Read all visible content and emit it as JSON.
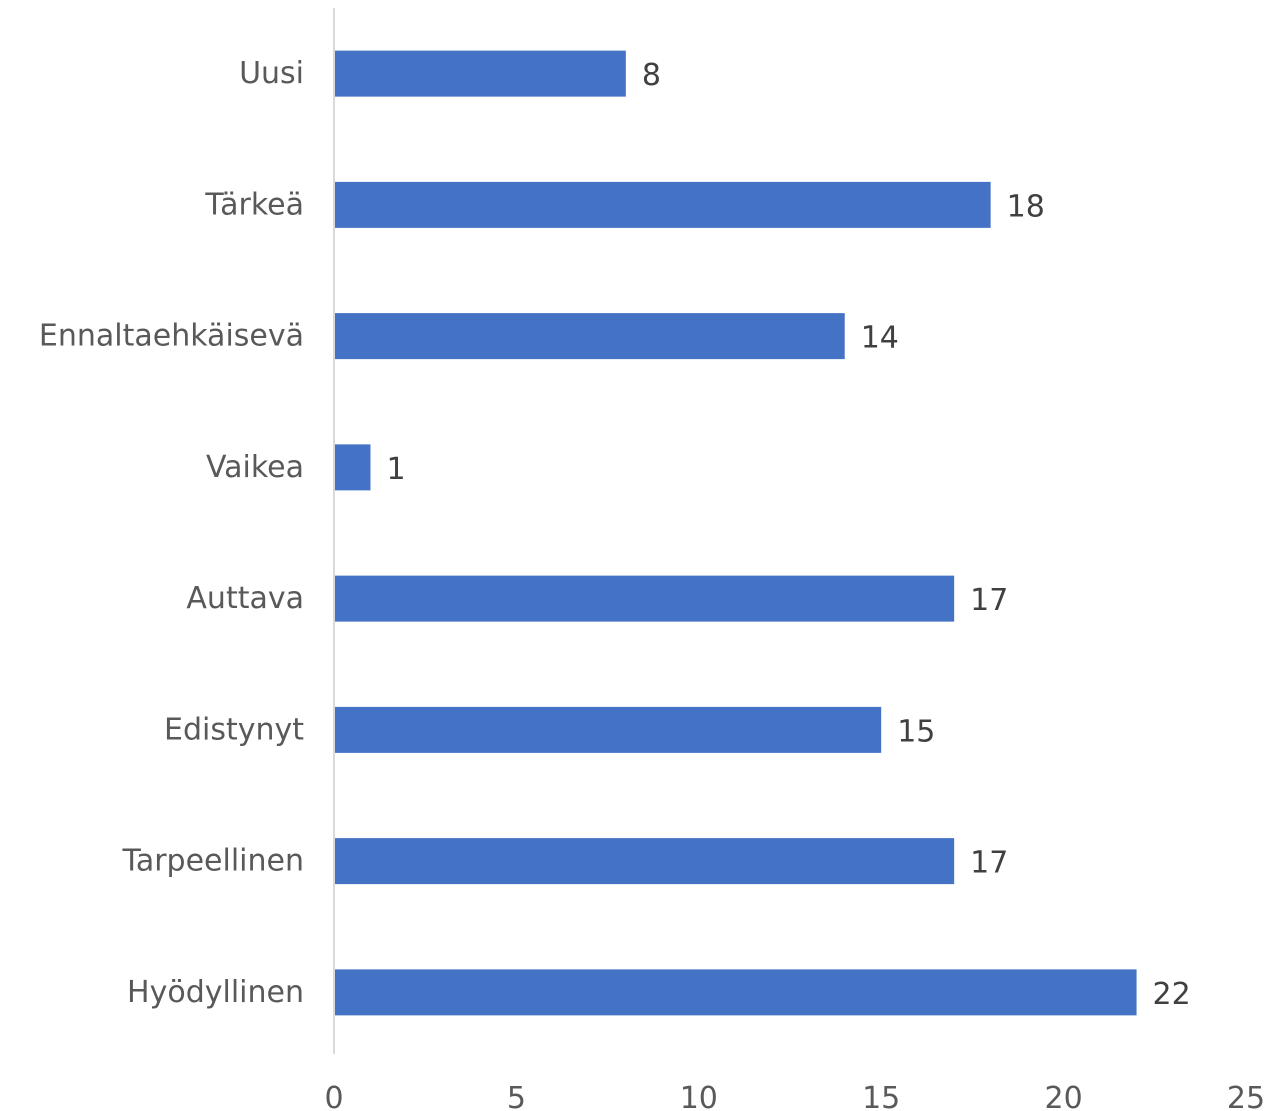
{
  "chart_data": {
    "type": "bar",
    "orientation": "horizontal",
    "categories": [
      "Uusi",
      "Tärkeä",
      "Ennaltaehkäisevä",
      "Vaikea",
      "Auttava",
      "Edistynyt",
      "Tarpeellinen",
      "Hyödyllinen"
    ],
    "values": [
      8,
      18,
      14,
      1,
      17,
      15,
      17,
      22
    ],
    "title": "",
    "xlabel": "",
    "ylabel": "",
    "xlim": [
      0,
      25
    ],
    "xticks": [
      "0",
      "5",
      "10",
      "15",
      "20",
      "25"
    ],
    "grid": false,
    "legend": "none",
    "data_labels": true,
    "bar_color": "#4472C4",
    "axis_color": "#D9D9D9"
  }
}
